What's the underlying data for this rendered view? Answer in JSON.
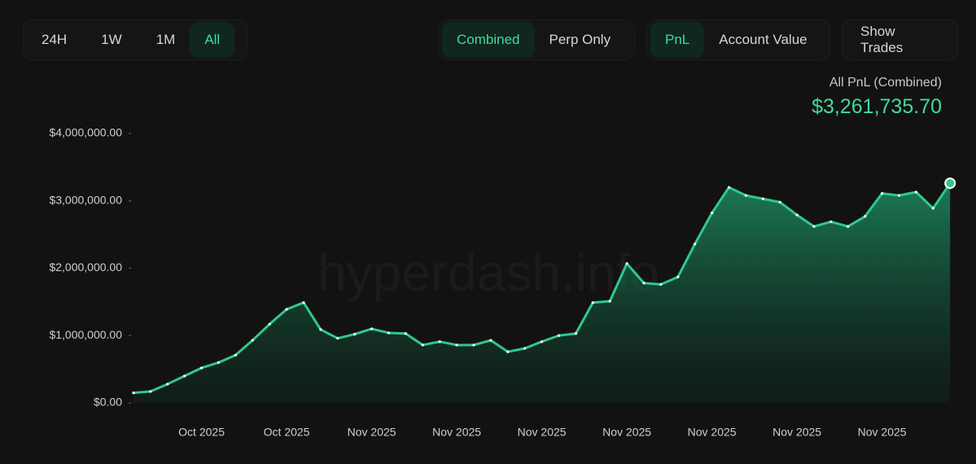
{
  "toolbar": {
    "timeframes": [
      "24H",
      "1W",
      "1M",
      "All"
    ],
    "views": [
      "Combined",
      "Perp Only"
    ],
    "metrics": [
      "PnL",
      "Account Value"
    ],
    "show_trades": "Show Trades"
  },
  "summary": {
    "label": "All PnL (Combined)",
    "value": "$3,261,735.70"
  },
  "watermark": "hyperdash.info",
  "chart_data": {
    "type": "area",
    "color": "#2fc98a",
    "categories": [
      null,
      null,
      null,
      null,
      "Oct 2025",
      null,
      null,
      null,
      null,
      "Oct 2025",
      null,
      null,
      null,
      null,
      "Nov 2025",
      null,
      null,
      null,
      null,
      "Nov 2025",
      null,
      null,
      null,
      null,
      "Nov 2025",
      null,
      null,
      null,
      null,
      "Nov 2025",
      null,
      null,
      null,
      null,
      "Nov 2025",
      null,
      null,
      null,
      null,
      "Nov 2025",
      null,
      null,
      null,
      null,
      "Nov 2025",
      null,
      null,
      null,
      null
    ],
    "values": [
      150000,
      170000,
      280000,
      400000,
      520000,
      600000,
      710000,
      930000,
      1170000,
      1390000,
      1490000,
      1090000,
      960000,
      1020000,
      1100000,
      1040000,
      1030000,
      860000,
      910000,
      860000,
      860000,
      930000,
      760000,
      810000,
      910000,
      1000000,
      1030000,
      1490000,
      1510000,
      2070000,
      1780000,
      1760000,
      1870000,
      2360000,
      2820000,
      3200000,
      3080000,
      3030000,
      2980000,
      2790000,
      2620000,
      2690000,
      2620000,
      2770000,
      3110000,
      3080000,
      3130000,
      2890000,
      3261735.7
    ],
    "ylim": [
      0,
      4000000
    ],
    "yticks": [
      {
        "value": 0,
        "label": "$0.00"
      },
      {
        "value": 1000000,
        "label": "$1,000,000.00"
      },
      {
        "value": 2000000,
        "label": "$2,000,000.00"
      },
      {
        "value": 3000000,
        "label": "$3,000,000.00"
      },
      {
        "value": 4000000,
        "label": "$4,000,000.00"
      }
    ]
  }
}
